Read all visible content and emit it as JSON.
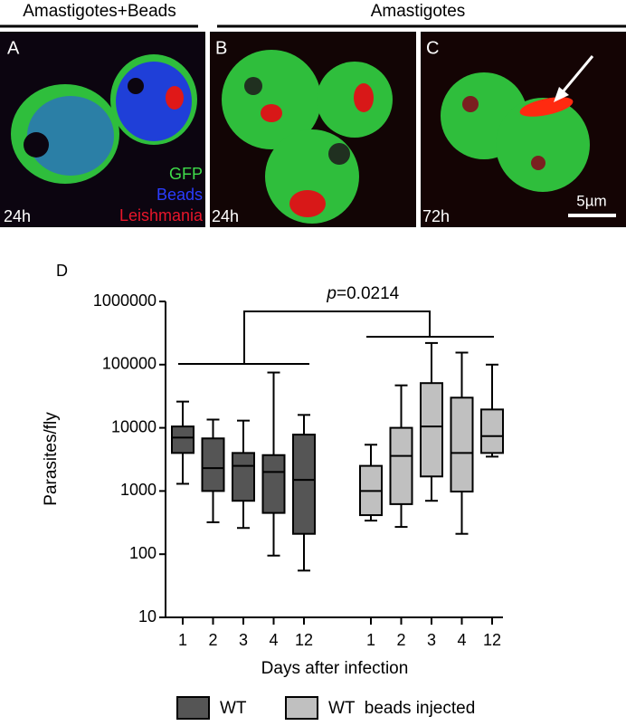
{
  "header": {
    "left": "Amastigotes+Beads",
    "right": "Amastigotes"
  },
  "panels": [
    {
      "label": "A",
      "time": "24h",
      "channels": [
        "GFP",
        "Beads",
        "Leishmania"
      ]
    },
    {
      "label": "B",
      "time": "24h"
    },
    {
      "label": "C",
      "time": "72h",
      "scale_bar": "5µm"
    }
  ],
  "chart_data": {
    "type": "box",
    "panel_label": "D",
    "ylabel": "Parasites/fly",
    "xlabel": "Days after infection",
    "annotation": {
      "symbol": "p",
      "text": "=0.0214"
    },
    "categories": [
      "1",
      "2",
      "3",
      "4",
      "12"
    ],
    "yscale": "log",
    "ylim": [
      10,
      1000000
    ],
    "yticks": [
      10,
      100,
      1000,
      10000,
      100000,
      1000000
    ],
    "series": [
      {
        "name": "WT",
        "color": "#555555",
        "boxes": [
          {
            "min": 1300,
            "q1": 4000,
            "median": 7000,
            "q3": 10500,
            "max": 26000
          },
          {
            "min": 320,
            "q1": 1000,
            "median": 2300,
            "q3": 6800,
            "max": 13500
          },
          {
            "min": 260,
            "q1": 700,
            "median": 2500,
            "q3": 4000,
            "max": 13000
          },
          {
            "min": 95,
            "q1": 450,
            "median": 2000,
            "q3": 3700,
            "max": 75000
          },
          {
            "min": 55,
            "q1": 210,
            "median": 1500,
            "q3": 7800,
            "max": 16000
          }
        ]
      },
      {
        "name": "WT  beads injected",
        "color": "#c0c0c0",
        "boxes": [
          {
            "min": 340,
            "q1": 415,
            "median": 1000,
            "q3": 2500,
            "max": 5400
          },
          {
            "min": 270,
            "q1": 620,
            "median": 3600,
            "q3": 10000,
            "max": 47000
          },
          {
            "min": 700,
            "q1": 1700,
            "median": 10500,
            "q3": 51000,
            "max": 220000
          },
          {
            "min": 210,
            "q1": 980,
            "median": 4000,
            "q3": 30000,
            "max": 155000
          },
          {
            "min": 3500,
            "q1": 4000,
            "median": 7400,
            "q3": 19500,
            "max": 100000
          }
        ]
      }
    ]
  }
}
